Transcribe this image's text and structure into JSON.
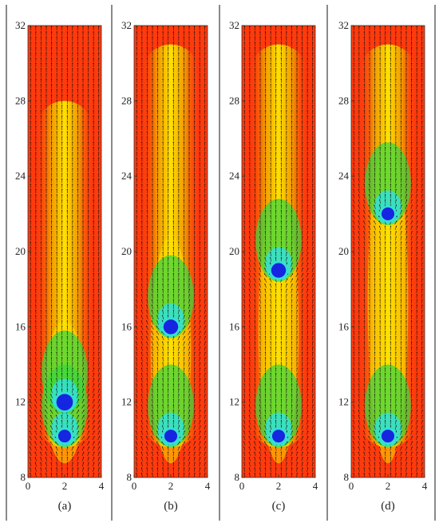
{
  "chart_data": {
    "type": "heatmap",
    "description_of_marks": "velocity vector field over a scalar contour map in a vertical channel",
    "colors": {
      "background": "#ff3a0d",
      "mid": "#f0a000",
      "high": "#ffe100",
      "green": "#3ed63e",
      "cyan": "#34e0d6",
      "core": "#1525e0",
      "vector": "#111111",
      "separator": "#808080"
    },
    "xlim": [
      0,
      4
    ],
    "ylim": [
      8,
      32
    ],
    "x_ticks": [
      "0",
      "2",
      "4"
    ],
    "y_ticks": [
      "8",
      "12",
      "16",
      "20",
      "24",
      "28",
      "32"
    ],
    "panels": [
      {
        "label": "(a)",
        "bubbles": [
          {
            "x": 2,
            "y": 10.2,
            "r": 0.35
          },
          {
            "x": 2,
            "y": 12.0,
            "r": 0.45
          }
        ],
        "wake": {
          "from": 9.6,
          "to": 28,
          "peak": 15.5
        }
      },
      {
        "label": "(b)",
        "bubbles": [
          {
            "x": 2,
            "y": 10.2,
            "r": 0.35
          },
          {
            "x": 2,
            "y": 16.0,
            "r": 0.4
          }
        ],
        "wake": {
          "from": 9.6,
          "to": 31,
          "peak": 20
        }
      },
      {
        "label": "(c)",
        "bubbles": [
          {
            "x": 2,
            "y": 10.2,
            "r": 0.35
          },
          {
            "x": 2,
            "y": 19.0,
            "r": 0.4
          }
        ],
        "wake": {
          "from": 9.6,
          "to": 31,
          "peak": 22
        }
      },
      {
        "label": "(d)",
        "bubbles": [
          {
            "x": 2,
            "y": 10.2,
            "r": 0.35
          },
          {
            "x": 2,
            "y": 22.0,
            "r": 0.35
          }
        ],
        "wake": {
          "from": 9.6,
          "to": 31,
          "peak": 25
        }
      }
    ]
  }
}
